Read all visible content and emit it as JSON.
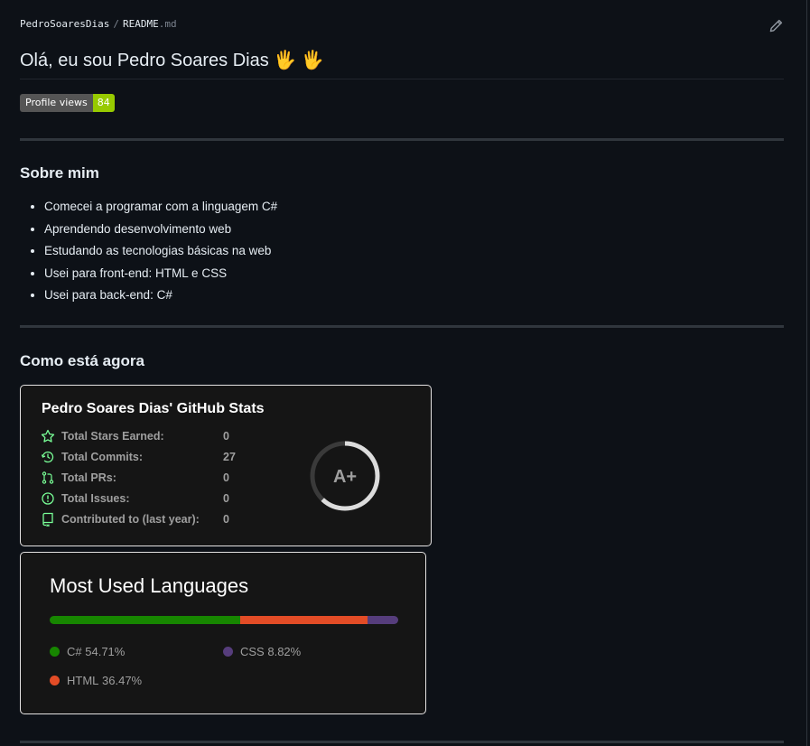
{
  "breadcrumb": {
    "owner": "PedroSoaresDias",
    "separator": "/",
    "file": "README",
    "ext": ".md"
  },
  "heading": "Olá, eu sou Pedro Soares Dias 🖐 🖐",
  "badge": {
    "label": "Profile views",
    "count": "84",
    "color": "#97ca00"
  },
  "about": {
    "title": "Sobre mim",
    "items": [
      "Comecei a programar com a linguagem C#",
      "Aprendendo desenvolvimento web",
      "Estudando as tecnologias básicas na web",
      "Usei para front-end: HTML e CSS",
      "Usei para back-end: C#"
    ]
  },
  "now": {
    "title": "Como está agora"
  },
  "stats": {
    "title": "Pedro Soares Dias' GitHub Stats",
    "rows": [
      {
        "icon": "star-icon",
        "label": "Total Stars Earned:",
        "value": "0"
      },
      {
        "icon": "history-icon",
        "label": "Total Commits:",
        "value": "27"
      },
      {
        "icon": "pull-request-icon",
        "label": "Total PRs:",
        "value": "0"
      },
      {
        "icon": "issue-icon",
        "label": "Total Issues:",
        "value": "0"
      },
      {
        "icon": "repo-icon",
        "label": "Contributed to (last year):",
        "value": "0"
      }
    ],
    "rank": "A+",
    "rank_progress": 0.62,
    "icon_color": "#79ff97"
  },
  "languages": {
    "title": "Most Used Languages",
    "items": [
      {
        "name": "C#",
        "percent": "54.71%",
        "value": 54.71,
        "color": "#178600"
      },
      {
        "name": "HTML",
        "percent": "36.47%",
        "value": 36.47,
        "color": "#e34c26"
      },
      {
        "name": "CSS",
        "percent": "8.82%",
        "value": 8.82,
        "color": "#563d7c"
      }
    ]
  }
}
